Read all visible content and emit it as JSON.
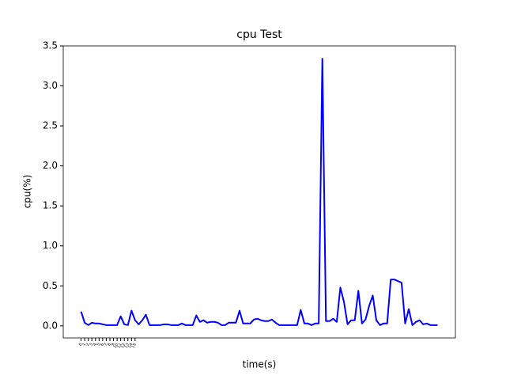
{
  "chart_data": {
    "type": "line",
    "title": "cpu Test",
    "x_label": "time(s)",
    "y_label": "cpu(%)",
    "x": [
      0,
      1,
      2,
      3,
      4,
      5,
      6,
      7,
      8,
      9,
      10,
      11,
      12,
      13,
      14,
      15,
      16,
      17,
      18,
      19,
      20,
      21,
      22,
      23,
      24,
      25,
      26,
      27,
      28,
      29,
      30,
      31,
      32,
      33,
      34,
      35,
      36,
      37,
      38,
      39,
      40,
      41,
      42,
      43,
      44,
      45,
      46,
      47,
      48,
      49,
      50,
      51,
      52,
      53,
      54,
      55,
      56,
      57,
      58,
      59,
      60,
      61,
      62,
      63,
      64,
      65,
      66,
      67,
      68,
      69,
      70,
      71,
      72,
      73,
      74,
      75,
      76,
      77,
      78,
      79,
      80,
      81,
      82,
      83,
      84,
      85,
      86,
      87,
      88,
      89,
      90,
      91,
      92,
      93,
      94,
      95,
      96,
      97,
      98,
      99
    ],
    "series": [
      {
        "name": "cpu",
        "color": "#0000ff",
        "values": [
          0.18,
          0.04,
          0.01,
          0.04,
          0.03,
          0.03,
          0.02,
          0.01,
          0.01,
          0.01,
          0.01,
          0.12,
          0.02,
          0.01,
          0.19,
          0.07,
          0.02,
          0.07,
          0.14,
          0.01,
          0.01,
          0.01,
          0.01,
          0.02,
          0.02,
          0.01,
          0.01,
          0.01,
          0.03,
          0.01,
          0.01,
          0.01,
          0.13,
          0.05,
          0.07,
          0.04,
          0.05,
          0.05,
          0.04,
          0.01,
          0.01,
          0.04,
          0.04,
          0.04,
          0.19,
          0.03,
          0.03,
          0.03,
          0.08,
          0.09,
          0.07,
          0.06,
          0.06,
          0.08,
          0.04,
          0.01,
          0.01,
          0.01,
          0.01,
          0.01,
          0.01,
          0.2,
          0.03,
          0.03,
          0.01,
          0.03,
          0.03,
          3.34,
          0.06,
          0.06,
          0.09,
          0.05,
          0.48,
          0.3,
          0.02,
          0.07,
          0.07,
          0.44,
          0.03,
          0.08,
          0.25,
          0.38,
          0.07,
          0.01,
          0.03,
          0.03,
          0.58,
          0.58,
          0.56,
          0.54,
          0.03,
          0.21,
          0.01,
          0.05,
          0.07,
          0.02,
          0.03,
          0.01,
          0.01,
          0.01
        ]
      }
    ],
    "xlim": [
      -4.95,
      103.95
    ],
    "ylim": [
      -0.15,
      3.5
    ],
    "xticks": [
      0,
      1,
      2,
      3,
      4,
      5,
      6,
      7,
      8,
      9,
      10,
      11,
      12,
      13,
      14,
      15
    ],
    "yticks": [
      {
        "value": 0,
        "label": "0.0"
      },
      {
        "value": 0.5,
        "label": "0.5"
      },
      {
        "value": 1,
        "label": "1.0"
      },
      {
        "value": 1.5,
        "label": "1.5"
      },
      {
        "value": 2,
        "label": "2.0"
      },
      {
        "value": 2.5,
        "label": "2.5"
      },
      {
        "value": 3,
        "label": "3.0"
      },
      {
        "value": 3.5,
        "label": "3.5"
      }
    ]
  }
}
